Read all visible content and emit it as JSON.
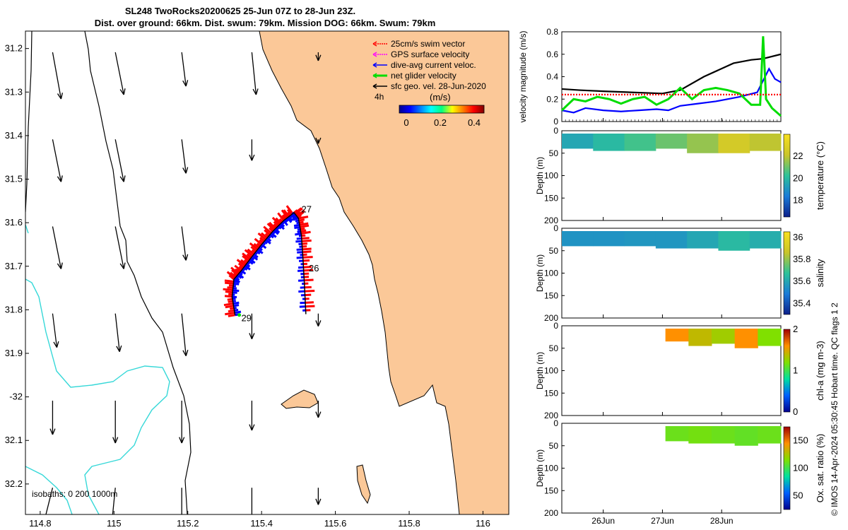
{
  "title": {
    "line1": "SL248 TwoRocks20200625 25-Jun 07Z to 28-Jun 23Z.",
    "line2": "Dist. over ground: 66km. Dist. swum: 79km. Mission DOG: 66km. Swum: 79km"
  },
  "credit": "© IMOS 14-Apr-2024 05:30:45 Hobart time. QC flags 1  2",
  "colors": {
    "land": "#fbc898",
    "isobath_200": "#000000",
    "isobath_1000": "#000000",
    "isobath_0": "#36d8d8",
    "swim": "#ff0000",
    "gps": "#ff00ff",
    "current": "#0000ff",
    "net": "#00dd00",
    "geo": "#000000"
  },
  "chart_data": [
    {
      "type": "map",
      "xlim": [
        114.76,
        116.07
      ],
      "ylim": [
        -32.27,
        -31.16
      ],
      "xticks": [
        114.8,
        115,
        115.2,
        115.4,
        115.6,
        115.8,
        116
      ],
      "yticks": [
        -31.2,
        -31.3,
        -31.4,
        -31.5,
        -31.6,
        -31.7,
        -31.8,
        -31.9,
        -32,
        -32.1,
        -32.2
      ],
      "ytick_labels": [
        "31.2",
        "31.3",
        "31.4",
        "31.5",
        "31.6",
        "31.7",
        "31.8",
        "31.9",
        "-32",
        "32.1",
        "32.2"
      ],
      "legend": [
        {
          "label": "25cm/s swim vector",
          "color": "#ff0000"
        },
        {
          "label": "GPS surface velocity",
          "color": "#ff00ff"
        },
        {
          "label": "dive-avg current veloc.",
          "color": "#0000ff"
        },
        {
          "label": "net glider velocity",
          "color": "#00dd00"
        },
        {
          "label": "sfc geo. vel. 28-Jun-2020",
          "color": "#000000"
        }
      ],
      "legend_placement": "top-right",
      "colorbar": {
        "title": "(m/s)",
        "ticks": [
          "0",
          "0.2",
          "0.4"
        ],
        "range": [
          0,
          0.5
        ],
        "note": "4h"
      },
      "isobaths_label": "isobaths: 0   200  1000m",
      "track": [
        [
          115.328,
          -31.812
        ],
        [
          115.32,
          -31.77
        ],
        [
          115.325,
          -31.73
        ],
        [
          115.345,
          -31.71
        ],
        [
          115.372,
          -31.68
        ],
        [
          115.4,
          -31.65
        ],
        [
          115.43,
          -31.62
        ],
        [
          115.46,
          -31.595
        ],
        [
          115.488,
          -31.577
        ],
        [
          115.5,
          -31.59
        ],
        [
          115.508,
          -31.63
        ],
        [
          115.512,
          -31.68
        ],
        [
          115.516,
          -31.74
        ],
        [
          115.52,
          -31.81
        ]
      ],
      "day_labels": [
        {
          "text": "27",
          "lon": 115.508,
          "lat": -31.57
        },
        {
          "text": "26",
          "lon": 115.528,
          "lat": -31.705
        },
        {
          "text": "29",
          "lon": 115.345,
          "lat": -31.82
        }
      ],
      "geo_vectors": [
        {
          "lon": 114.78,
          "lat": -31.16,
          "u": 0.02,
          "v": -0.11
        },
        {
          "lon": 114.95,
          "lat": -31.16,
          "u": 0.02,
          "v": -0.1
        },
        {
          "lon": 115.13,
          "lat": -31.16,
          "u": 0.01,
          "v": -0.08
        },
        {
          "lon": 115.32,
          "lat": -31.16,
          "u": 0.01,
          "v": -0.1
        },
        {
          "lon": 115.5,
          "lat": -31.16,
          "u": 0.0,
          "v": -0.02
        },
        {
          "lon": 114.78,
          "lat": -31.36,
          "u": 0.02,
          "v": -0.1
        },
        {
          "lon": 114.95,
          "lat": -31.36,
          "u": 0.02,
          "v": -0.1
        },
        {
          "lon": 115.13,
          "lat": -31.36,
          "u": 0.01,
          "v": -0.08
        },
        {
          "lon": 115.32,
          "lat": -31.36,
          "u": 0.0,
          "v": -0.05
        },
        {
          "lon": 115.5,
          "lat": -31.36,
          "u": 0.0,
          "v": -0.01
        },
        {
          "lon": 114.78,
          "lat": -31.56,
          "u": 0.02,
          "v": -0.1
        },
        {
          "lon": 114.95,
          "lat": -31.56,
          "u": 0.02,
          "v": -0.1
        },
        {
          "lon": 115.13,
          "lat": -31.56,
          "u": 0.01,
          "v": -0.08
        },
        {
          "lon": 114.78,
          "lat": -31.76,
          "u": 0.01,
          "v": -0.08
        },
        {
          "lon": 114.95,
          "lat": -31.76,
          "u": 0.01,
          "v": -0.09
        },
        {
          "lon": 115.13,
          "lat": -31.76,
          "u": 0.01,
          "v": -0.1
        },
        {
          "lon": 115.32,
          "lat": -31.76,
          "u": 0.0,
          "v": -0.06
        },
        {
          "lon": 115.5,
          "lat": -31.76,
          "u": 0.0,
          "v": -0.03
        },
        {
          "lon": 114.78,
          "lat": -31.96,
          "u": 0.0,
          "v": -0.08
        },
        {
          "lon": 114.95,
          "lat": -31.96,
          "u": 0.0,
          "v": -0.1
        },
        {
          "lon": 115.13,
          "lat": -31.96,
          "u": 0.0,
          "v": -0.1
        },
        {
          "lon": 115.32,
          "lat": -31.96,
          "u": 0.0,
          "v": -0.07
        },
        {
          "lon": 115.5,
          "lat": -31.96,
          "u": 0.0,
          "v": -0.04
        },
        {
          "lon": 114.78,
          "lat": -32.16,
          "u": -0.02,
          "v": -0.08
        },
        {
          "lon": 114.95,
          "lat": -32.16,
          "u": -0.01,
          "v": -0.1
        },
        {
          "lon": 115.13,
          "lat": -32.16,
          "u": 0.0,
          "v": -0.1
        },
        {
          "lon": 115.32,
          "lat": -32.16,
          "u": 0.0,
          "v": -0.09
        },
        {
          "lon": 115.5,
          "lat": -32.16,
          "u": 0.0,
          "v": -0.04
        }
      ]
    },
    {
      "type": "line",
      "ylabel": "velocity magnitude (m/s)",
      "ylim": [
        0,
        0.8
      ],
      "yticks": [
        "0",
        "0.2",
        "0.4",
        "0.6",
        "0.8"
      ],
      "x_range_days": [
        25.3,
        29.0
      ],
      "series": [
        {
          "color": "#000000",
          "x": [
            25.3,
            25.6,
            26.0,
            26.5,
            27.0,
            27.3,
            27.7,
            28.2,
            28.5,
            28.7,
            29.0
          ],
          "y": [
            0.29,
            0.28,
            0.27,
            0.26,
            0.25,
            0.28,
            0.4,
            0.52,
            0.55,
            0.56,
            0.6
          ]
        },
        {
          "color": "#0000ff",
          "x": [
            25.3,
            25.5,
            25.7,
            26.0,
            26.3,
            26.6,
            26.9,
            27.1,
            27.3,
            27.6,
            27.9,
            28.3,
            28.6,
            28.8,
            28.9,
            29.0
          ],
          "y": [
            0.1,
            0.08,
            0.12,
            0.1,
            0.09,
            0.1,
            0.11,
            0.1,
            0.14,
            0.16,
            0.18,
            0.22,
            0.26,
            0.47,
            0.38,
            0.35
          ]
        },
        {
          "color": "#00dd00",
          "x": [
            25.3,
            25.5,
            25.7,
            25.9,
            26.1,
            26.3,
            26.5,
            26.7,
            26.9,
            27.1,
            27.3,
            27.5,
            27.7,
            27.9,
            28.1,
            28.3,
            28.5,
            28.65,
            28.7,
            28.75,
            28.85,
            29.0
          ],
          "y": [
            0.1,
            0.2,
            0.18,
            0.22,
            0.2,
            0.16,
            0.2,
            0.22,
            0.15,
            0.2,
            0.3,
            0.2,
            0.28,
            0.3,
            0.28,
            0.25,
            0.15,
            0.15,
            0.76,
            0.2,
            0.12,
            0.05
          ]
        },
        {
          "color": "#ff0000",
          "x": [
            25.3,
            29.0
          ],
          "y": [
            0.24,
            0.24
          ]
        }
      ]
    },
    {
      "type": "heatmap",
      "ylabel": "Depth (m)",
      "yticks": [
        "0",
        "50",
        "100",
        "150",
        "200"
      ],
      "ylim": [
        200,
        0
      ],
      "colorbar_label": "temperature (°C)",
      "colorbar_ticks": [
        "18",
        "20",
        "22"
      ],
      "crange": [
        16.5,
        24
      ],
      "x_range_days": [
        25.3,
        29.0
      ],
      "bottom_depth": [
        40,
        45,
        45,
        40,
        50,
        50,
        45
      ],
      "values": [
        19.5,
        20.0,
        20.5,
        21.0,
        21.5,
        22.5,
        22.0
      ]
    },
    {
      "type": "heatmap",
      "ylabel": "Depth (m)",
      "yticks": [
        "0",
        "50",
        "100",
        "150",
        "200"
      ],
      "ylim": [
        200,
        0
      ],
      "colorbar_label": "salinity",
      "colorbar_ticks": [
        "35.4",
        "35.6",
        "35.8",
        "36"
      ],
      "crange": [
        35.3,
        36.05
      ],
      "x_range_days": [
        25.3,
        29.0
      ],
      "bottom_depth": [
        40,
        40,
        40,
        45,
        45,
        50,
        45
      ],
      "values": [
        35.55,
        35.55,
        35.56,
        35.56,
        35.6,
        35.65,
        35.62
      ]
    },
    {
      "type": "heatmap",
      "ylabel": "Depth (m)",
      "yticks": [
        "0",
        "50",
        "100",
        "150",
        "200"
      ],
      "ylim": [
        200,
        0
      ],
      "colorbar_label": "chl-a (mg m-3)",
      "colorbar_ticks": [
        "0",
        "1",
        "2"
      ],
      "crange": [
        0,
        2
      ],
      "x_range_days": [
        27.05,
        29.0
      ],
      "bottom_depth": [
        35,
        45,
        40,
        50,
        45
      ],
      "values": [
        1.6,
        1.4,
        1.3,
        1.6,
        1.2
      ]
    },
    {
      "type": "heatmap",
      "ylabel": "Depth (m)",
      "yticks": [
        "0",
        "50",
        "100",
        "150",
        "200"
      ],
      "ylim": [
        200,
        0
      ],
      "colorbar_label": "Ox. sat. ratio (%)",
      "colorbar_ticks": [
        "50",
        "100",
        "150"
      ],
      "crange": [
        25,
        175
      ],
      "x_range_days": [
        27.05,
        29.0
      ],
      "bottom_depth": [
        40,
        45,
        45,
        50,
        45
      ],
      "values": [
        110,
        112,
        110,
        108,
        110
      ]
    },
    {
      "type": "axis",
      "xticks_days": [
        26,
        27,
        28
      ],
      "xtick_labels": [
        "26Jun",
        "27Jun",
        "28Jun"
      ]
    }
  ]
}
